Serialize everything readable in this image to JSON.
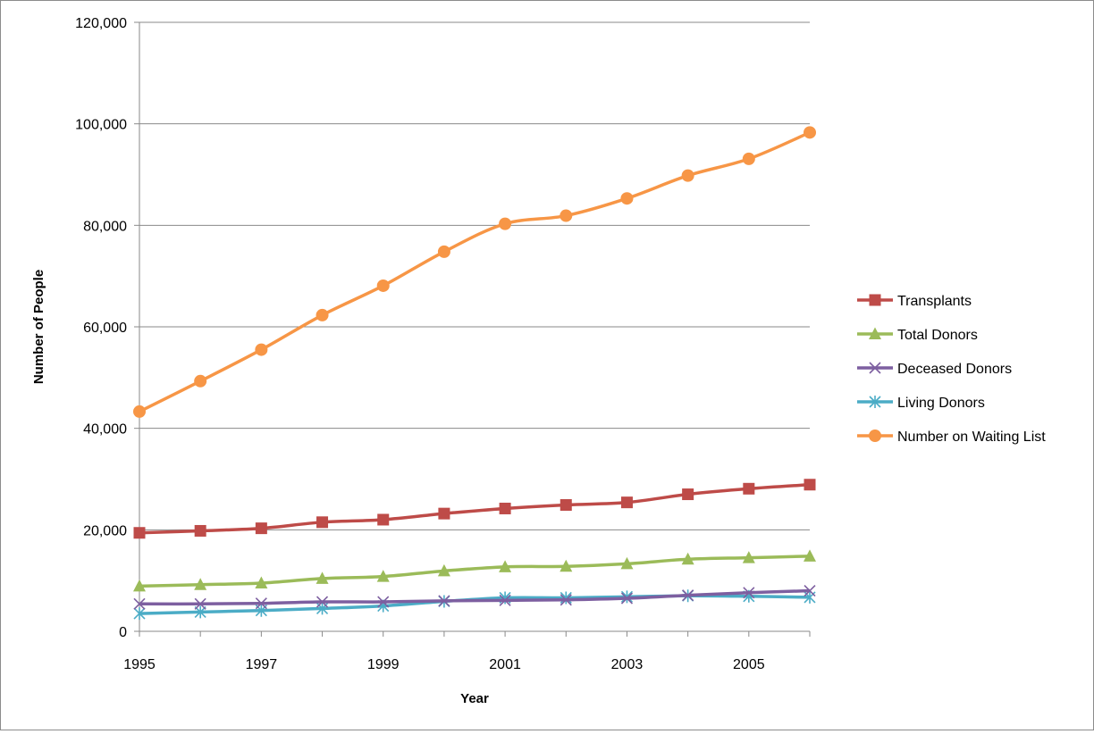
{
  "chart_data": {
    "type": "line",
    "title": "",
    "xlabel": "Year",
    "ylabel": "Number of People",
    "x": [
      1995,
      1996,
      1997,
      1998,
      1999,
      2000,
      2001,
      2002,
      2003,
      2004,
      2005,
      2006
    ],
    "x_tick_labels": [
      "1995",
      "1997",
      "1999",
      "2001",
      "2003",
      "2005"
    ],
    "xlim": [
      1995,
      2006
    ],
    "ylim": [
      0,
      120000
    ],
    "y_tick_labels": [
      "0",
      "20,000",
      "40,000",
      "60,000",
      "80,000",
      "100,000",
      "120,000"
    ],
    "grid": "horizontal",
    "legend_position": "right",
    "series": [
      {
        "name": "Transplants",
        "marker": "square",
        "color": "#BE4B48",
        "values": [
          19400,
          19800,
          20300,
          21500,
          22000,
          23200,
          24200,
          24900,
          25400,
          27000,
          28100,
          28900
        ]
      },
      {
        "name": "Total Donors",
        "marker": "triangle",
        "color": "#9BBB59",
        "values": [
          8900,
          9200,
          9500,
          10400,
          10800,
          11900,
          12700,
          12800,
          13300,
          14200,
          14500,
          14800
        ]
      },
      {
        "name": "Deceased Donors",
        "marker": "x",
        "color": "#7D5FA0",
        "values": [
          5400,
          5400,
          5500,
          5800,
          5800,
          6000,
          6100,
          6200,
          6500,
          7100,
          7600,
          8000
        ]
      },
      {
        "name": "Living Donors",
        "marker": "star",
        "color": "#4BACC6",
        "values": [
          3500,
          3800,
          4100,
          4500,
          5000,
          5900,
          6600,
          6600,
          6800,
          7000,
          6900,
          6700
        ]
      },
      {
        "name": "Number on Waiting List",
        "marker": "circle",
        "color": "#F79646",
        "values": [
          43300,
          49300,
          55500,
          62300,
          68100,
          74800,
          80300,
          81900,
          85300,
          89800,
          93100,
          98300
        ]
      }
    ]
  }
}
